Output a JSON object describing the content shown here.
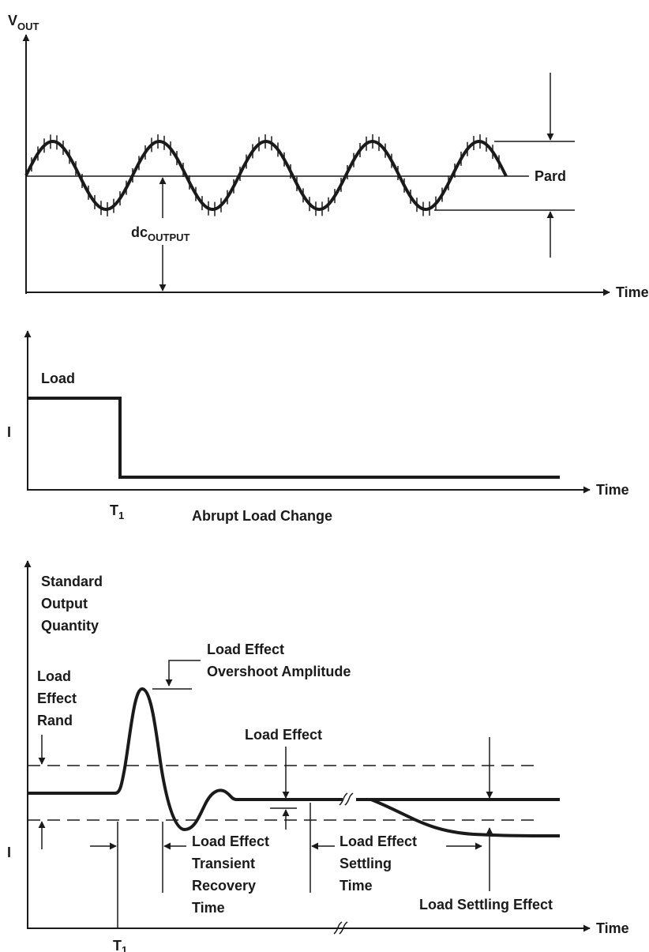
{
  "panel1": {
    "y_axis_label_main": "V",
    "y_axis_label_sub": "OUT",
    "x_axis_label": "Time",
    "pard_label": "Pard",
    "dc_label_main": "dc",
    "dc_label_sub": "OUTPUT"
  },
  "panel2": {
    "y_axis_label": "I",
    "x_axis_label": "Time",
    "load_label": "Load",
    "t1_main": "T",
    "t1_sub": "1",
    "caption": "Abrupt Load Change"
  },
  "panel3": {
    "y_axis_lines": [
      "Standard",
      "Output",
      "Quantity"
    ],
    "band_label_lines": [
      "Load",
      "Effect",
      "Rand"
    ],
    "i_label": "I",
    "overshoot_lines": [
      "Load Effect",
      "Overshoot Amplitude"
    ],
    "load_effect_label": "Load Effect",
    "recovery_lines": [
      "Load Effect",
      "Transient",
      "Recovery",
      "Time"
    ],
    "settling_lines": [
      "Load Effect",
      "Settling",
      "Time"
    ],
    "settling_effect_label": "Load Settling Effect",
    "x_axis_label": "Time",
    "t1_main": "T",
    "t1_sub": "1"
  }
}
